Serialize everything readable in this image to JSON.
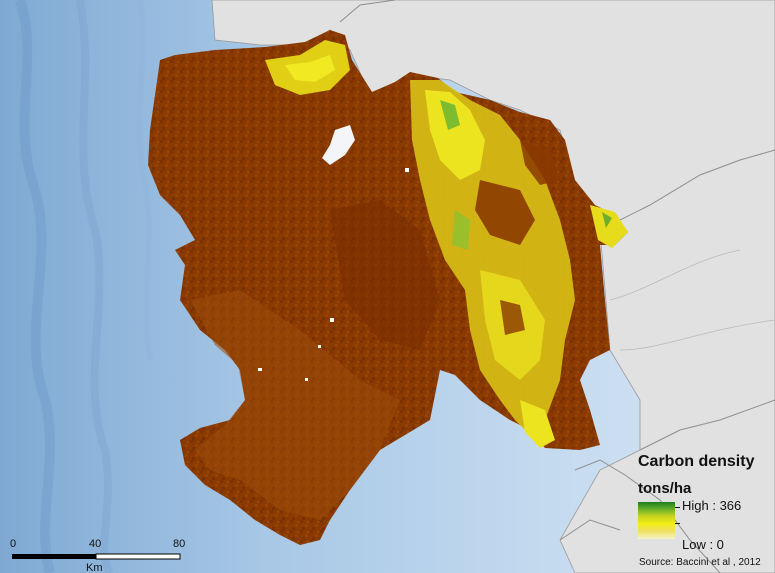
{
  "legend": {
    "title": "Carbon density",
    "unit": "tons/ha",
    "high_label": "High : 366",
    "low_label": "Low : 0",
    "ramp_colors": [
      "#1e7d1e",
      "#5fae2a",
      "#c6d21f",
      "#f2ee12",
      "#efe060",
      "#f4f2c8"
    ]
  },
  "source": "Source: Baccini et al , 2012",
  "scalebar": {
    "ticks": [
      "0",
      "40",
      "80"
    ],
    "unit": "Km"
  },
  "colors": {
    "ocean": "#a9c9e6",
    "neighbor_land": "#e1e1e1",
    "low_carbon": "#8a3a00",
    "mid_carbon": "#a0560f",
    "high_carbon_yellow": "#e2d21a",
    "high_carbon_green": "#79b52c"
  }
}
